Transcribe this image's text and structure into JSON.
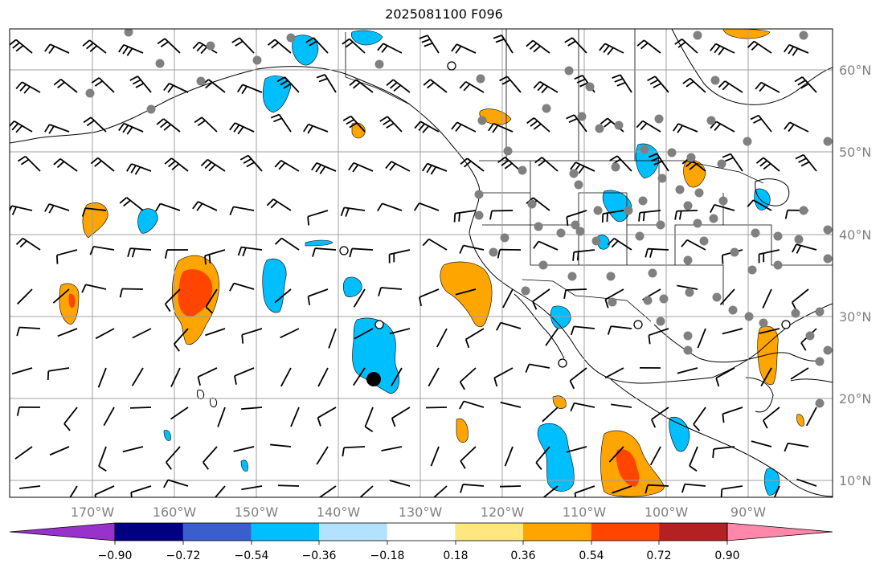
{
  "title": "2025081100 F096",
  "map": {
    "lon_labels": [
      "170°W",
      "160°W",
      "150°W",
      "140°W",
      "130°W",
      "120°W",
      "110°W",
      "100°W",
      "90°W"
    ],
    "lat_labels": [
      "60°N",
      "50°N",
      "40°N",
      "30°N",
      "20°N",
      "10°N"
    ],
    "grid_color": "#a0a0a0",
    "land_outline_color": "#000000",
    "station_marker_color": "#808080",
    "barb_color": "#000000"
  },
  "colorbar": {
    "tick_labels": [
      "−0.90",
      "−0.72",
      "−0.54",
      "−0.36",
      "−0.18",
      "0.18",
      "0.36",
      "0.54",
      "0.72",
      "0.90"
    ],
    "colors": [
      "#9932cc",
      "#000080",
      "#3a5fcd",
      "#00bfff",
      "#b2e2ff",
      "#ffffff",
      "#ffe680",
      "#ffa500",
      "#ff4500",
      "#b22222",
      "#ff88aa"
    ]
  }
}
